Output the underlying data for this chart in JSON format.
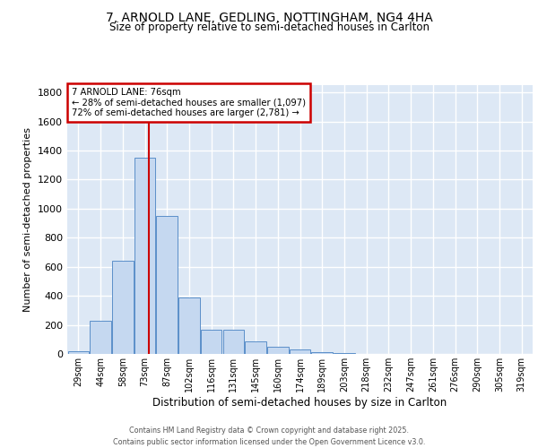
{
  "title1": "7, ARNOLD LANE, GEDLING, NOTTINGHAM, NG4 4HA",
  "title2": "Size of property relative to semi-detached houses in Carlton",
  "xlabel": "Distribution of semi-detached houses by size in Carlton",
  "ylabel": "Number of semi-detached properties",
  "categories": [
    "29sqm",
    "44sqm",
    "58sqm",
    "73sqm",
    "87sqm",
    "102sqm",
    "116sqm",
    "131sqm",
    "145sqm",
    "160sqm",
    "174sqm",
    "189sqm",
    "203sqm",
    "218sqm",
    "232sqm",
    "247sqm",
    "261sqm",
    "276sqm",
    "290sqm",
    "305sqm",
    "319sqm"
  ],
  "values": [
    20,
    230,
    640,
    1350,
    950,
    390,
    165,
    165,
    85,
    48,
    30,
    13,
    5,
    2,
    1,
    0,
    0,
    0,
    0,
    0,
    0
  ],
  "bar_color": "#c5d8f0",
  "bar_edge_color": "#5b8fc9",
  "bg_color": "#dde8f5",
  "grid_color": "#ffffff",
  "vline_color": "#cc0000",
  "annotation_title": "7 ARNOLD LANE: 76sqm",
  "annotation_line1": "← 28% of semi-detached houses are smaller (1,097)",
  "annotation_line2": "72% of semi-detached houses are larger (2,781) →",
  "annotation_box_color": "#cc0000",
  "ylim": [
    0,
    1850
  ],
  "yticks": [
    0,
    200,
    400,
    600,
    800,
    1000,
    1200,
    1400,
    1600,
    1800
  ],
  "footer1": "Contains HM Land Registry data © Crown copyright and database right 2025.",
  "footer2": "Contains public sector information licensed under the Open Government Licence v3.0."
}
